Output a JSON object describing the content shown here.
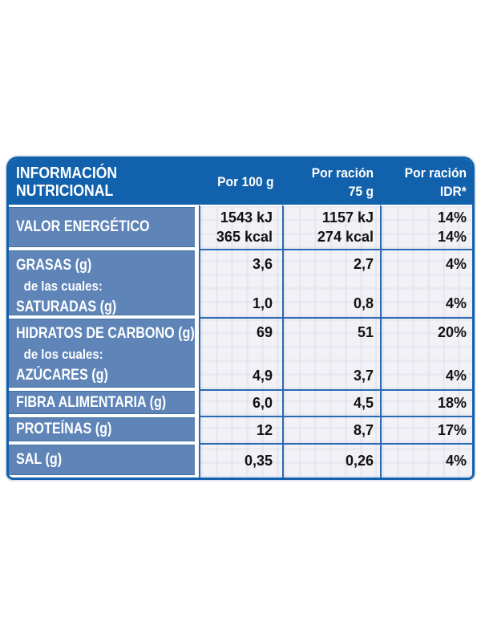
{
  "header": {
    "title_line1": "INFORMACIÓN",
    "title_line2": "NUTRICIONAL",
    "col_100g_line1": "Por 100 g",
    "col_100g_line2": "",
    "col_racion_line1": "Por ración",
    "col_racion_line2": "75 g",
    "col_idr_line1": "Por ración",
    "col_idr_line2": "IDR*"
  },
  "rows": [
    {
      "name": "valor-energetico",
      "label_lines": [
        "VALOR ENERGÉTICO"
      ],
      "per_100g": [
        "1543 kJ",
        "365 kcal"
      ],
      "per_racion": [
        "1157 kJ",
        "274 kcal"
      ],
      "idr": [
        "14%",
        "14%"
      ]
    },
    {
      "name": "grasas",
      "label_lines": [
        "GRASAS (g)",
        "de las cuales:",
        "SATURADAS (g)"
      ],
      "per_100g": [
        "3,6",
        "1,0"
      ],
      "per_racion": [
        "2,7",
        "0,8"
      ],
      "idr": [
        "4%",
        "4%"
      ]
    },
    {
      "name": "hidratos-de-carbono",
      "label_lines": [
        "HIDRATOS DE CARBONO (g)",
        "de los cuales:",
        "AZÚCARES (g)"
      ],
      "per_100g": [
        "69",
        "4,9"
      ],
      "per_racion": [
        "51",
        "3,7"
      ],
      "idr": [
        "20%",
        "4%"
      ]
    },
    {
      "name": "fibra-alimentaria",
      "label_lines": [
        "FIBRA ALIMENTARIA (g)"
      ],
      "per_100g": [
        "6,0"
      ],
      "per_racion": [
        "4,5"
      ],
      "idr": [
        "18%"
      ]
    },
    {
      "name": "proteinas",
      "label_lines": [
        "PROTEÍNAS (g)"
      ],
      "per_100g": [
        "12"
      ],
      "per_racion": [
        "8,7"
      ],
      "idr": [
        "17%"
      ]
    },
    {
      "name": "sal",
      "label_lines": [
        "SAL (g)"
      ],
      "per_100g": [
        "0,35"
      ],
      "per_racion": [
        "0,26"
      ],
      "idr": [
        "4%"
      ]
    }
  ],
  "colors": {
    "header_blue": "#1161ac",
    "label_blue": "#5e84b8",
    "grid_line_blue": "#2a6ab2",
    "cell_background": "#f1f1f6",
    "value_text": "#121212",
    "page_background": "#ffffff"
  }
}
